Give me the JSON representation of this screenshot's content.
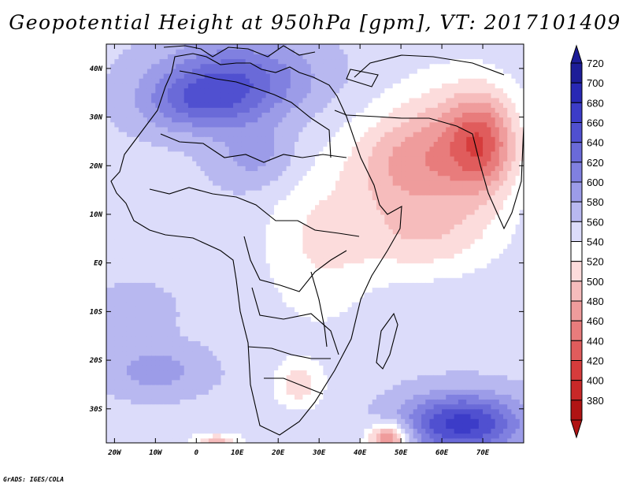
{
  "title": "Geopotential Height at 950hPa [gpm], VT: 2017101409",
  "credit": "GrADS: IGES/COLA",
  "map": {
    "lon_range": [
      -22,
      80
    ],
    "lat_range": [
      -37,
      45
    ],
    "lon_ticks": [
      {
        "v": -20,
        "label": "20W"
      },
      {
        "v": -10,
        "label": "10W"
      },
      {
        "v": 0,
        "label": "0"
      },
      {
        "v": 10,
        "label": "10E"
      },
      {
        "v": 20,
        "label": "20E"
      },
      {
        "v": 30,
        "label": "30E"
      },
      {
        "v": 40,
        "label": "40E"
      },
      {
        "v": 50,
        "label": "50E"
      },
      {
        "v": 60,
        "label": "60E"
      },
      {
        "v": 70,
        "label": "70E"
      }
    ],
    "lat_ticks": [
      {
        "v": 40,
        "label": "40N"
      },
      {
        "v": 30,
        "label": "30N"
      },
      {
        "v": 20,
        "label": "20N"
      },
      {
        "v": 10,
        "label": "10N"
      },
      {
        "v": 0,
        "label": "EQ"
      },
      {
        "v": -10,
        "label": "10S"
      },
      {
        "v": -20,
        "label": "20S"
      },
      {
        "v": -30,
        "label": "30S"
      }
    ]
  },
  "colorbar": {
    "levels": [
      "720",
      "700",
      "680",
      "660",
      "640",
      "620",
      "600",
      "580",
      "560",
      "540",
      "520",
      "500",
      "480",
      "460",
      "440",
      "420",
      "400",
      "380"
    ],
    "colors": [
      "#1d1d98",
      "#2828b4",
      "#3c3cc8",
      "#5050d0",
      "#6a6ad8",
      "#8080e0",
      "#9c9ce8",
      "#b8b8f0",
      "#dcdcfa",
      "#ffffff",
      "#fcdcdc",
      "#f6bcbc",
      "#ef9c9c",
      "#e87c7c",
      "#e05c5c",
      "#d63c3c",
      "#c82828",
      "#b01414"
    ]
  },
  "chart_data": {
    "type": "heatmap",
    "title": "Geopotential Height at 950hPa [gpm], VT: 2017101409",
    "variable": "Geopotential Height",
    "level": "950hPa",
    "units": "gpm",
    "valid_time": "2017101409",
    "x_range": [
      -22,
      80
    ],
    "y_range": [
      -37,
      45
    ],
    "contour_levels": [
      380,
      400,
      420,
      440,
      460,
      480,
      500,
      520,
      540,
      560,
      580,
      600,
      620,
      640,
      660,
      680,
      700,
      720
    ],
    "base_value": 575,
    "features": [
      {
        "lon": 10,
        "lat": 38,
        "value": 650,
        "rx": 18,
        "ry": 8
      },
      {
        "lon": 0,
        "lat": 33,
        "value": 630,
        "rx": 14,
        "ry": 6
      },
      {
        "lon": 15,
        "lat": 22,
        "value": 610,
        "rx": 10,
        "ry": 7
      },
      {
        "lon": 65,
        "lat": -33,
        "value": 690,
        "rx": 14,
        "ry": 6
      },
      {
        "lon": -10,
        "lat": -22,
        "value": 610,
        "rx": 12,
        "ry": 5
      },
      {
        "lon": -15,
        "lat": -10,
        "value": 590,
        "rx": 10,
        "ry": 6
      },
      {
        "lon": 62,
        "lat": 23,
        "value": 500,
        "rx": 15,
        "ry": 14
      },
      {
        "lon": 48,
        "lat": 20,
        "value": 530,
        "rx": 12,
        "ry": 10
      },
      {
        "lon": 70,
        "lat": 25,
        "value": 495,
        "rx": 8,
        "ry": 10
      },
      {
        "lon": 55,
        "lat": 5,
        "value": 535,
        "rx": 18,
        "ry": 8
      },
      {
        "lon": 30,
        "lat": 5,
        "value": 540,
        "rx": 14,
        "ry": 18
      },
      {
        "lon": 25,
        "lat": -25,
        "value": 530,
        "rx": 6,
        "ry": 5
      },
      {
        "lon": 47,
        "lat": -36,
        "value": 470,
        "rx": 5,
        "ry": 3
      },
      {
        "lon": 5,
        "lat": -37,
        "value": 510,
        "rx": 6,
        "ry": 2
      }
    ]
  }
}
